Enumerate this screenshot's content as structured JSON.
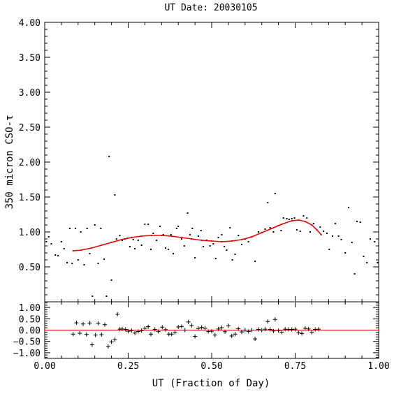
{
  "chart_data": [
    {
      "type": "scatter",
      "title": "UT Date: 20030105",
      "xlabel": "UT (Fraction of Day)",
      "ylabel": "350 micron CSO-τ",
      "xlim": [
        0.0,
        1.0
      ],
      "ylim": [
        0.0,
        4.0
      ],
      "x_ticks": [
        "0.00",
        "0.25",
        "0.50",
        "0.75",
        "1.00"
      ],
      "y_ticks": [
        "0.50",
        "1.00",
        "1.50",
        "2.00",
        "2.50",
        "3.00",
        "3.50",
        "4.00"
      ],
      "series": [
        {
          "marker": "dot",
          "color": "#000000",
          "points": [
            [
              0.005,
              0.86
            ],
            [
              0.012,
              0.93
            ],
            [
              0.02,
              0.83
            ],
            [
              0.032,
              0.67
            ],
            [
              0.04,
              0.66
            ],
            [
              0.05,
              0.86
            ],
            [
              0.058,
              0.76
            ],
            [
              0.067,
              0.56
            ],
            [
              0.075,
              1.05
            ],
            [
              0.082,
              0.55
            ],
            [
              0.092,
              1.05
            ],
            [
              0.1,
              0.6
            ],
            [
              0.108,
              1.0
            ],
            [
              0.118,
              0.53
            ],
            [
              0.127,
              1.05
            ],
            [
              0.135,
              0.69
            ],
            [
              0.143,
              0.08
            ],
            [
              0.15,
              1.1
            ],
            [
              0.16,
              0.55
            ],
            [
              0.168,
              1.05
            ],
            [
              0.178,
              0.61
            ],
            [
              0.185,
              0.08
            ],
            [
              0.193,
              2.08
            ],
            [
              0.2,
              0.31
            ],
            [
              0.21,
              1.53
            ],
            [
              0.215,
              0.9
            ],
            [
              0.225,
              0.95
            ],
            [
              0.232,
              0.88
            ],
            [
              0.24,
              0.9
            ],
            [
              0.248,
              0.91
            ],
            [
              0.255,
              0.79
            ],
            [
              0.265,
              0.89
            ],
            [
              0.27,
              0.76
            ],
            [
              0.28,
              0.88
            ],
            [
              0.29,
              0.81
            ],
            [
              0.3,
              1.11
            ],
            [
              0.31,
              1.11
            ],
            [
              0.318,
              0.75
            ],
            [
              0.325,
              0.98
            ],
            [
              0.335,
              0.88
            ],
            [
              0.345,
              1.08
            ],
            [
              0.355,
              0.96
            ],
            [
              0.362,
              0.77
            ],
            [
              0.37,
              0.75
            ],
            [
              0.378,
              0.96
            ],
            [
              0.385,
              0.69
            ],
            [
              0.395,
              1.05
            ],
            [
              0.4,
              1.08
            ],
            [
              0.41,
              0.9
            ],
            [
              0.418,
              0.8
            ],
            [
              0.428,
              1.27
            ],
            [
              0.435,
              0.96
            ],
            [
              0.442,
              1.05
            ],
            [
              0.45,
              0.63
            ],
            [
              0.46,
              0.94
            ],
            [
              0.468,
              1.02
            ],
            [
              0.475,
              0.79
            ],
            [
              0.485,
              0.88
            ],
            [
              0.495,
              0.8
            ],
            [
              0.505,
              0.83
            ],
            [
              0.512,
              0.62
            ],
            [
              0.52,
              0.92
            ],
            [
              0.53,
              0.96
            ],
            [
              0.538,
              0.79
            ],
            [
              0.545,
              0.74
            ],
            [
              0.555,
              1.06
            ],
            [
              0.562,
              0.6
            ],
            [
              0.57,
              0.68
            ],
            [
              0.58,
              0.95
            ],
            [
              0.59,
              0.82
            ],
            [
              0.6,
              0.9
            ],
            [
              0.61,
              0.86
            ],
            [
              0.62,
              0.93
            ],
            [
              0.63,
              0.58
            ],
            [
              0.64,
              1.0
            ],
            [
              0.65,
              0.99
            ],
            [
              0.66,
              1.04
            ],
            [
              0.668,
              1.42
            ],
            [
              0.675,
              1.06
            ],
            [
              0.685,
              1.0
            ],
            [
              0.69,
              1.55
            ],
            [
              0.7,
              1.09
            ],
            [
              0.708,
              1.02
            ],
            [
              0.715,
              1.2
            ],
            [
              0.725,
              1.19
            ],
            [
              0.732,
              1.18
            ],
            [
              0.74,
              1.19
            ],
            [
              0.748,
              1.2
            ],
            [
              0.755,
              1.03
            ],
            [
              0.765,
              1.01
            ],
            [
              0.775,
              1.23
            ],
            [
              0.785,
              1.2
            ],
            [
              0.795,
              1.0
            ],
            [
              0.805,
              1.12
            ],
            [
              0.815,
              1.03
            ],
            [
              0.825,
              1.07
            ],
            [
              0.835,
              1.01
            ],
            [
              0.845,
              0.98
            ],
            [
              0.852,
              0.75
            ],
            [
              0.862,
              0.94
            ],
            [
              0.87,
              1.12
            ],
            [
              0.88,
              0.94
            ],
            [
              0.888,
              0.89
            ],
            [
              0.9,
              0.7
            ],
            [
              0.91,
              1.35
            ],
            [
              0.92,
              0.85
            ],
            [
              0.928,
              0.4
            ],
            [
              0.935,
              1.15
            ],
            [
              0.945,
              1.14
            ],
            [
              0.955,
              0.65
            ],
            [
              0.965,
              0.56
            ],
            [
              0.975,
              0.9
            ],
            [
              0.988,
              0.86
            ],
            [
              0.997,
              0.56
            ]
          ]
        },
        {
          "marker": "line",
          "color": "#ee0000",
          "points": [
            [
              0.085,
              0.73
            ],
            [
              0.11,
              0.74
            ],
            [
              0.14,
              0.77
            ],
            [
              0.17,
              0.81
            ],
            [
              0.2,
              0.85
            ],
            [
              0.23,
              0.89
            ],
            [
              0.26,
              0.92
            ],
            [
              0.29,
              0.94
            ],
            [
              0.32,
              0.95
            ],
            [
              0.35,
              0.95
            ],
            [
              0.38,
              0.94
            ],
            [
              0.41,
              0.92
            ],
            [
              0.44,
              0.9
            ],
            [
              0.47,
              0.88
            ],
            [
              0.5,
              0.87
            ],
            [
              0.53,
              0.86
            ],
            [
              0.56,
              0.87
            ],
            [
              0.59,
              0.89
            ],
            [
              0.62,
              0.93
            ],
            [
              0.65,
              0.99
            ],
            [
              0.68,
              1.05
            ],
            [
              0.71,
              1.11
            ],
            [
              0.74,
              1.16
            ],
            [
              0.76,
              1.17
            ],
            [
              0.78,
              1.15
            ],
            [
              0.8,
              1.1
            ],
            [
              0.815,
              1.03
            ],
            [
              0.828,
              0.96
            ]
          ]
        }
      ]
    },
    {
      "type": "scatter",
      "xlabel": "UT (Fraction of Day)",
      "xlim": [
        0.0,
        1.0
      ],
      "ylim": [
        -1.25,
        1.25
      ],
      "x_ticks": [
        "0.00",
        "0.25",
        "0.50",
        "0.75",
        "1.00"
      ],
      "y_ticks": [
        "1.00",
        "0.50",
        "0.00",
        "−0.50",
        "−1.00"
      ],
      "zero_line_color": "#ee0000",
      "series": [
        {
          "marker": "plus",
          "color": "#000000",
          "points": [
            [
              0.085,
              -0.18
            ],
            [
              0.095,
              0.32
            ],
            [
              0.105,
              -0.14
            ],
            [
              0.115,
              0.27
            ],
            [
              0.125,
              -0.19
            ],
            [
              0.135,
              0.31
            ],
            [
              0.142,
              -0.65
            ],
            [
              0.152,
              -0.22
            ],
            [
              0.16,
              0.3
            ],
            [
              0.17,
              -0.2
            ],
            [
              0.18,
              0.24
            ],
            [
              0.19,
              -0.72
            ],
            [
              0.2,
              -0.52
            ],
            [
              0.21,
              -0.42
            ],
            [
              0.218,
              0.7
            ],
            [
              0.225,
              0.04
            ],
            [
              0.232,
              0.05
            ],
            [
              0.242,
              0.03
            ],
            [
              0.25,
              -0.05
            ],
            [
              0.26,
              -0.02
            ],
            [
              0.27,
              -0.13
            ],
            [
              0.28,
              -0.06
            ],
            [
              0.29,
              -0.02
            ],
            [
              0.3,
              0.08
            ],
            [
              0.31,
              0.15
            ],
            [
              0.318,
              -0.18
            ],
            [
              0.33,
              0.03
            ],
            [
              0.34,
              -0.06
            ],
            [
              0.352,
              0.13
            ],
            [
              0.362,
              0.02
            ],
            [
              0.372,
              -0.18
            ],
            [
              0.38,
              -0.18
            ],
            [
              0.39,
              -0.1
            ],
            [
              0.4,
              0.14
            ],
            [
              0.41,
              0.16
            ],
            [
              0.42,
              0.0
            ],
            [
              0.43,
              0.36
            ],
            [
              0.44,
              0.2
            ],
            [
              0.45,
              -0.28
            ],
            [
              0.46,
              0.07
            ],
            [
              0.47,
              0.12
            ],
            [
              0.48,
              0.08
            ],
            [
              0.49,
              -0.06
            ],
            [
              0.5,
              -0.05
            ],
            [
              0.51,
              -0.22
            ],
            [
              0.52,
              0.05
            ],
            [
              0.53,
              0.11
            ],
            [
              0.54,
              -0.07
            ],
            [
              0.55,
              0.19
            ],
            [
              0.56,
              -0.26
            ],
            [
              0.57,
              -0.18
            ],
            [
              0.58,
              0.06
            ],
            [
              0.59,
              -0.08
            ],
            [
              0.6,
              0.0
            ],
            [
              0.61,
              -0.06
            ],
            [
              0.62,
              0.0
            ],
            [
              0.63,
              -0.39
            ],
            [
              0.64,
              0.03
            ],
            [
              0.65,
              0.0
            ],
            [
              0.66,
              0.04
            ],
            [
              0.668,
              0.38
            ],
            [
              0.675,
              0.03
            ],
            [
              0.685,
              -0.04
            ],
            [
              0.69,
              0.47
            ],
            [
              0.7,
              -0.02
            ],
            [
              0.71,
              -0.09
            ],
            [
              0.72,
              0.04
            ],
            [
              0.73,
              0.03
            ],
            [
              0.74,
              0.03
            ],
            [
              0.75,
              0.04
            ],
            [
              0.76,
              -0.12
            ],
            [
              0.77,
              -0.15
            ],
            [
              0.78,
              0.08
            ],
            [
              0.79,
              0.05
            ],
            [
              0.8,
              -0.1
            ],
            [
              0.81,
              0.03
            ],
            [
              0.82,
              0.04
            ]
          ]
        }
      ]
    }
  ]
}
